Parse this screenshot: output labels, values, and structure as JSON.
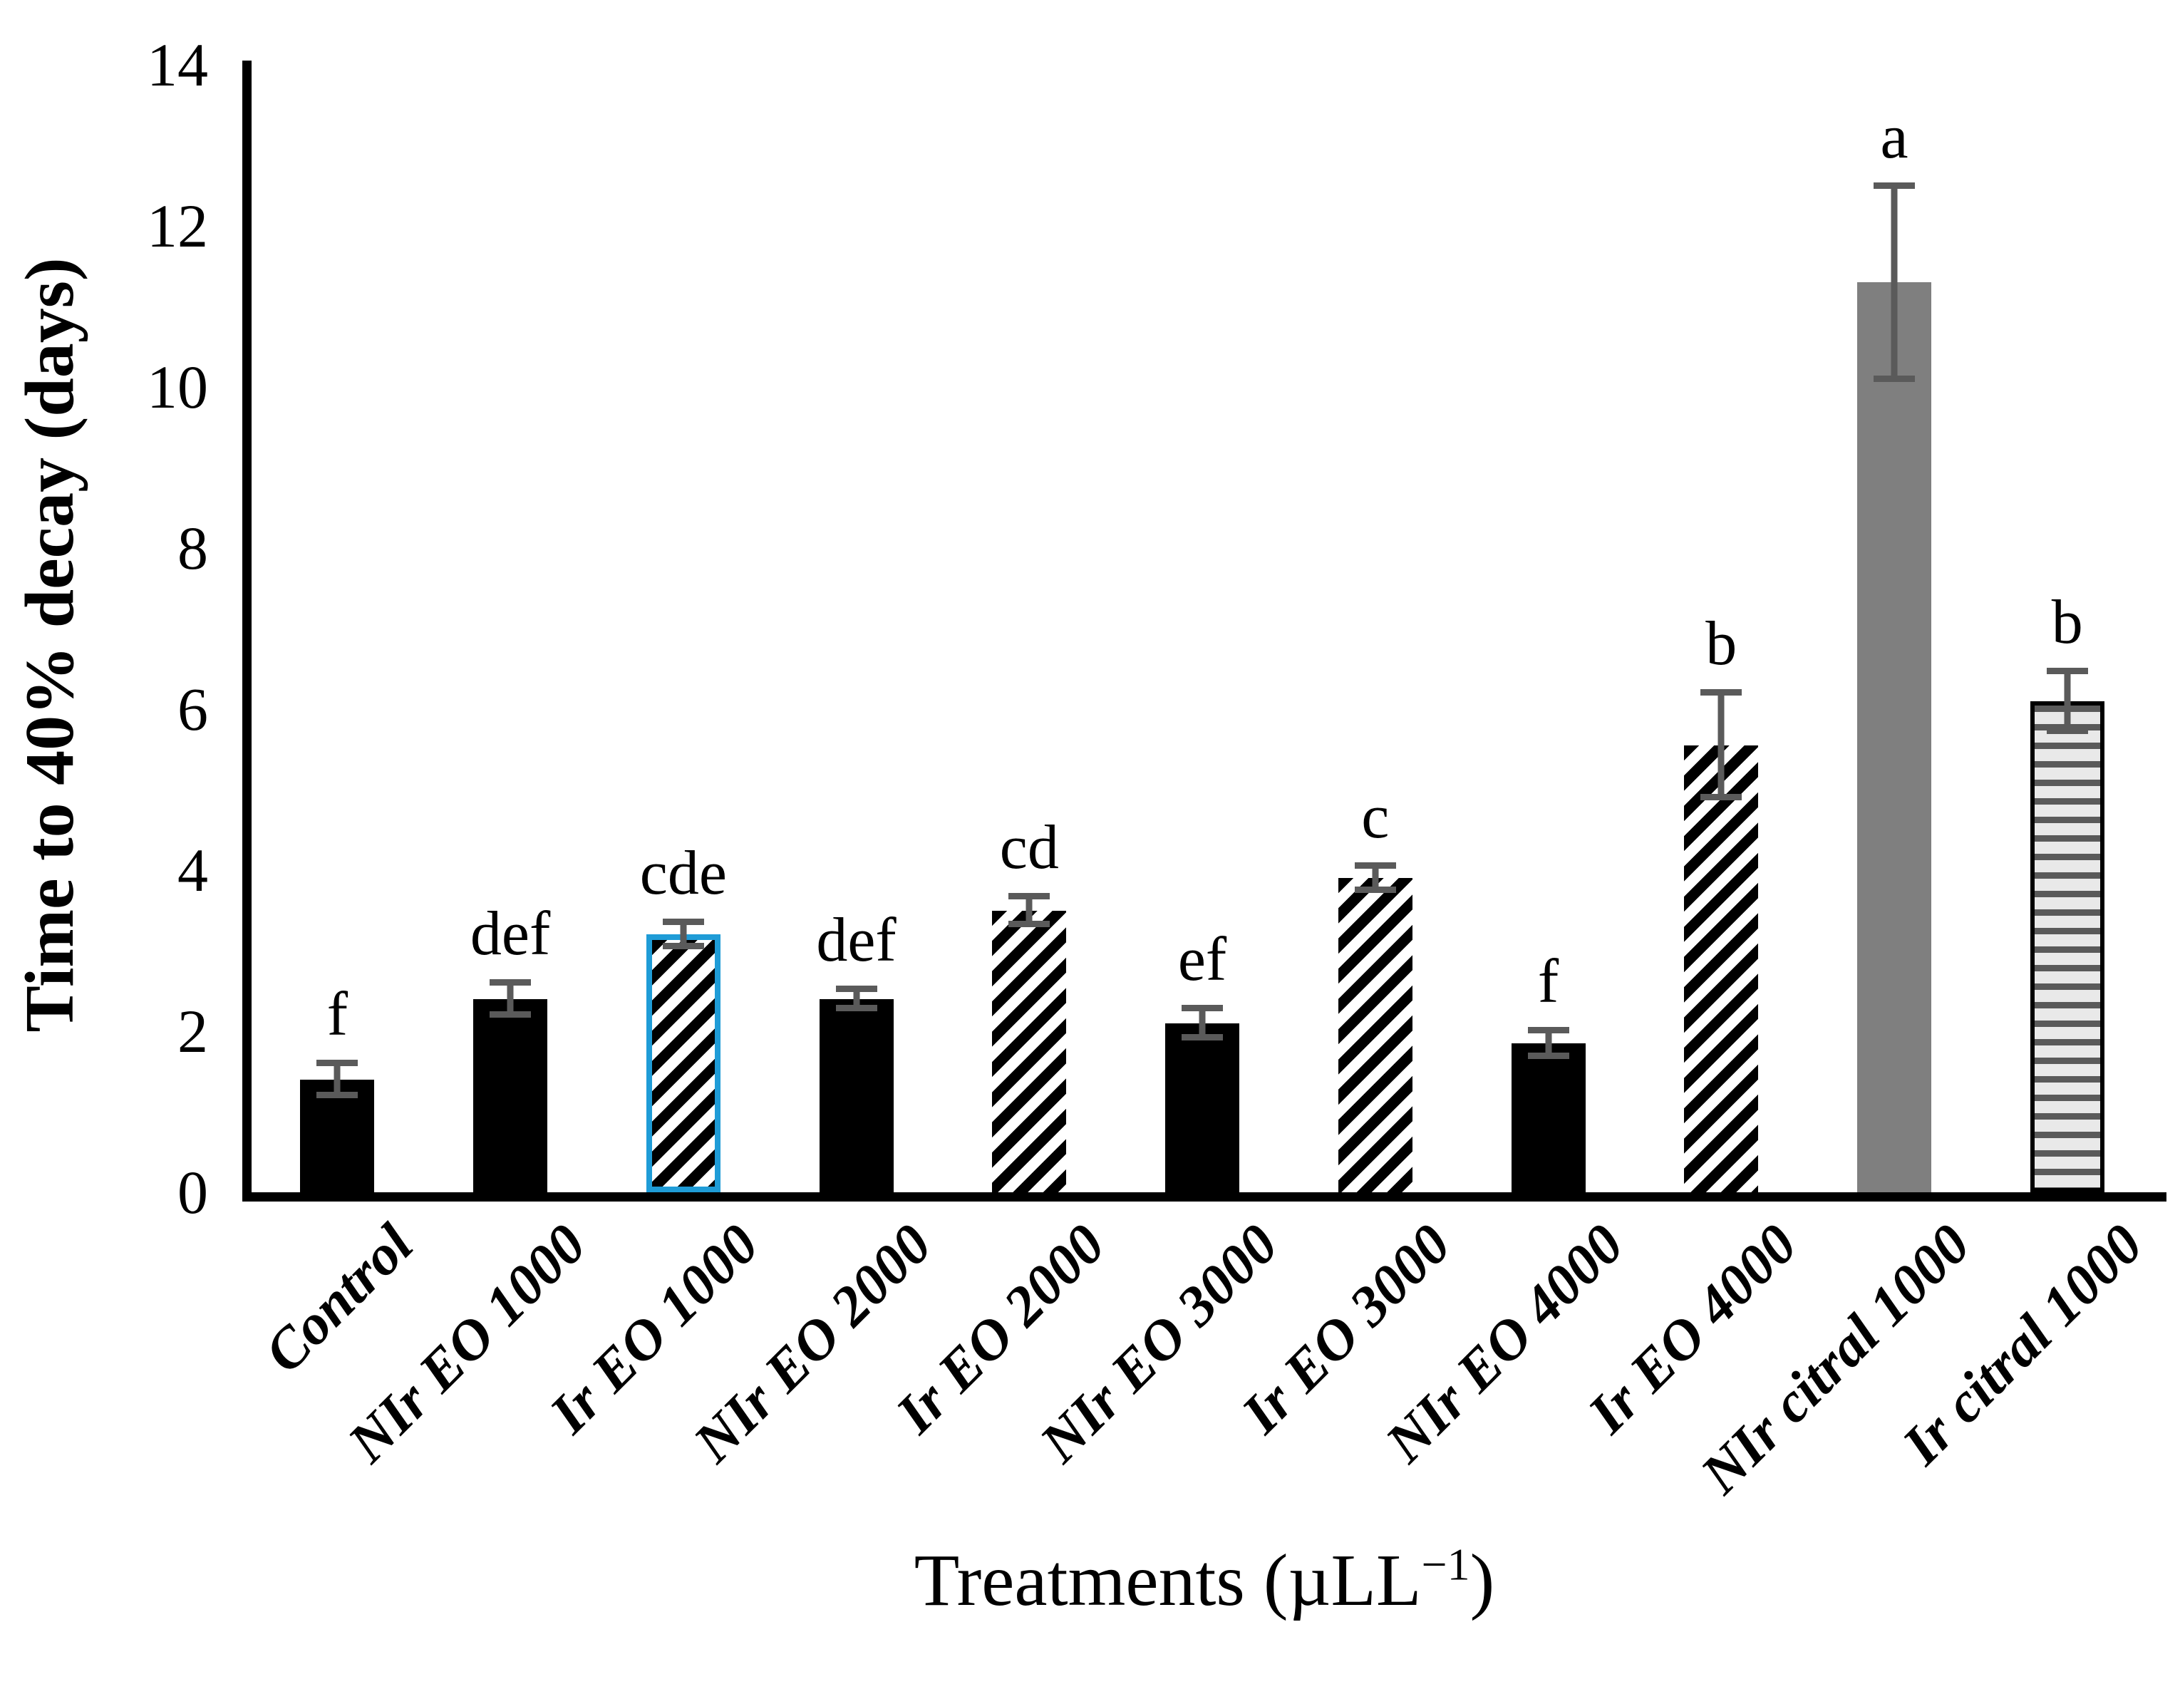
{
  "chart_data": {
    "type": "bar",
    "title": "",
    "ylabel": "Time to 40% decay (days)",
    "xlabel": {
      "prefix": "Treatments (µLL",
      "superscript": "−1",
      "suffix": ")"
    },
    "ylim": [
      0,
      14
    ],
    "yticks": [
      0,
      2,
      4,
      6,
      8,
      10,
      12,
      14
    ],
    "grid": false,
    "legend_position": "none",
    "categories": [
      "Control",
      "NIr EO 1000",
      "Ir EO 1000",
      "NIr EO 2000",
      "Ir EO 2000",
      "NIr EO 3000",
      "Ir EO 3000",
      "NIr EO 4000",
      "Ir EO 4000",
      "NIr citral 1000",
      "Ir citral 1000"
    ],
    "series": [
      {
        "name": "Time to 40% decay (days)",
        "values": [
          1.4,
          2.4,
          3.2,
          2.4,
          3.5,
          2.1,
          3.9,
          1.85,
          5.55,
          11.3,
          6.1
        ],
        "errors": [
          0.2,
          0.2,
          0.15,
          0.12,
          0.17,
          0.18,
          0.15,
          0.16,
          0.65,
          1.2,
          0.37
        ],
        "sig_letters": [
          "f",
          "def",
          "cde",
          "def",
          "cd",
          "ef",
          "c",
          "f",
          "b",
          "a",
          "b"
        ],
        "bar_styles": [
          "black",
          "black",
          "hatch_highlight",
          "black",
          "hatch",
          "black",
          "hatch",
          "black",
          "hatch",
          "gray",
          "hstripe"
        ]
      }
    ],
    "colors": {
      "bar_black": "#000000",
      "bar_gray": "#7f7f7f",
      "hatch_foreground": "#000000",
      "hatch_background": "#ffffff",
      "highlight_border": "#1f9cd7",
      "hstripe_dark": "#5a5a5a",
      "hstripe_light": "#e9e9e9",
      "hstripe_border": "#000000",
      "error_bar": "#5a5a5a",
      "axis": "#000000"
    }
  }
}
